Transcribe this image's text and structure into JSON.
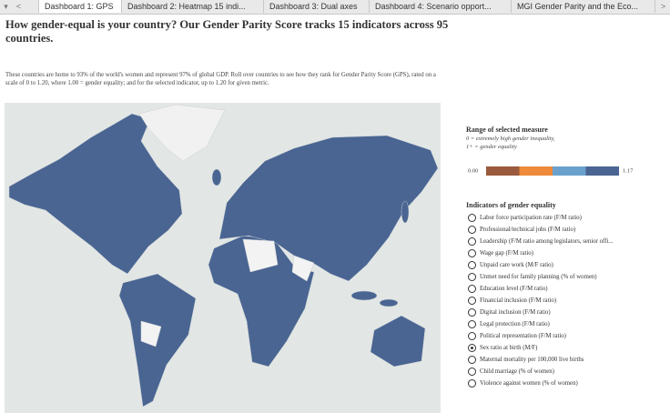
{
  "tabs": [
    "Dashboard 1: GPS",
    "Dashboard 2: Heatmap 15 indi...",
    "Dashboard 3: Dual axes",
    "Dashboard 4: Scenario opport...",
    "MGI Gender Parity and the Eco..."
  ],
  "header": {
    "title": "How gender-equal is your country? Our Gender Parity Score tracks 15 indicators across 95 countries.",
    "description": "These countries are home to 93% of the world's women and represent 97% of global GDP. Roll over countries to see how they rank for Gender Parity Score (GPS), rated on a scale of 0 to 1.20, where 1.00 = gender equality; and for the selected indicator, up to 1.20 for given metric."
  },
  "legend": {
    "title": "Range of selected measure",
    "notes": [
      "0 = extremely high gender inequality,",
      "1+ = gender equality"
    ],
    "min_label": "0.00",
    "max_label": "1.17",
    "colors": [
      "#9a5a3d",
      "#ef8a3a",
      "#6aa1cc",
      "#4a6592"
    ]
  },
  "indicators": {
    "title": "Indicators of gender equality",
    "selected": 11,
    "options": [
      "Labor force participation rate (F/M ratio)",
      "Professional/technical jobs (F/M ratio)",
      "Leadership (F/M ratio among legislators, senior offi...",
      "Wage gap (F/M ratio)",
      "Unpaid care work (M/F ratio)",
      "Unmet need for family planning (% of women)",
      "Education level (F/M ratio)",
      "Financial inclusion (F/M ratio)",
      "Digital inclusion (F/M ratio)",
      "Legal protection (F/M ratio)",
      "Political representation (F/M ratio)",
      "Sex ratio at birth (M/F)",
      "Maternal mortality per 100,000 live births",
      "Child marriage (% of women)",
      "Violence against women (% of women)"
    ]
  }
}
